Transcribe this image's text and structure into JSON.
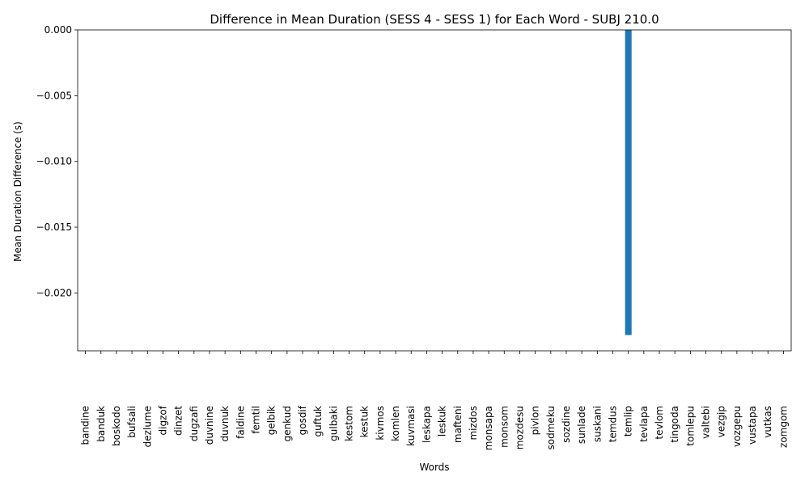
{
  "chart_data": {
    "type": "bar",
    "title": "Difference in Mean Duration (SESS 4 - SESS 1) for Each Word - SUBJ 210.0",
    "xlabel": "Words",
    "ylabel": "Mean Duration Difference (s)",
    "ylim": [
      -0.0244,
      0.0
    ],
    "yticks": [
      0.0,
      -0.005,
      -0.01,
      -0.015,
      -0.02
    ],
    "ytick_labels": [
      "0.000",
      "−0.005",
      "−0.010",
      "−0.015",
      "−0.020"
    ],
    "categories": [
      "bandine",
      "banduk",
      "boskodo",
      "bufsali",
      "dezlume",
      "digzof",
      "dinzet",
      "dugzafi",
      "duvnine",
      "duvnuk",
      "faldine",
      "femtil",
      "gelbik",
      "genkud",
      "gosdif",
      "guftuk",
      "gulbaki",
      "kestom",
      "kestuk",
      "kivmos",
      "komlen",
      "kuvmasi",
      "leskapa",
      "leskuk",
      "mafteni",
      "mizdos",
      "monsapa",
      "monsom",
      "mozdesu",
      "pivlon",
      "sodmeku",
      "sozdine",
      "sunlade",
      "suskani",
      "temdus",
      "temlip",
      "tevlapa",
      "tevlom",
      "tingoda",
      "tomlepu",
      "valtebi",
      "vezgip",
      "vozgepu",
      "vustapa",
      "vutkas",
      "zomgom"
    ],
    "values": [
      0,
      0,
      0,
      0,
      0,
      0,
      0,
      0,
      0,
      0,
      0,
      0,
      0,
      0,
      0,
      0,
      0,
      0,
      0,
      0,
      0,
      0,
      0,
      0,
      0,
      0,
      0,
      0,
      0,
      0,
      0,
      0,
      0,
      0,
      0,
      -0.0232,
      0,
      0,
      0,
      0,
      0,
      0,
      0,
      0,
      0,
      0
    ],
    "bar_color": "#1f77b4",
    "grid": false,
    "legend": "none"
  }
}
